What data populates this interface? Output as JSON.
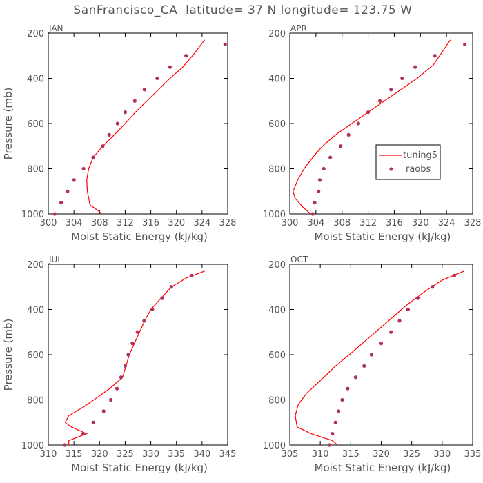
{
  "figure_title": "SanFrancisco_CA  latitude= 37 N longitude= 123.75 W",
  "colors": {
    "model": "#ff0000",
    "obs": "#b03060",
    "axis": "#000000",
    "text": "#555555"
  },
  "legend": {
    "model_label": "tuning5",
    "obs_label": "raobs",
    "placement": "center-right of APR panel"
  },
  "chart_data": [
    {
      "type": "line",
      "panel": "JAN",
      "xlabel": "Moist Static Energy (kJ/kg)",
      "ylabel": "Pressure (mb)",
      "xlim": [
        300,
        328
      ],
      "ylim": [
        200,
        1000
      ],
      "y_inverted": true,
      "xticks": [
        300,
        304,
        308,
        312,
        316,
        320,
        324,
        328
      ],
      "yticks": [
        200,
        400,
        600,
        800,
        1000
      ],
      "series": [
        {
          "name": "tuning5",
          "style": "line",
          "x": [
            308.5,
            308.0,
            306.5,
            306.1,
            306.0,
            306.3,
            307.0,
            308.5,
            310.3,
            312.0,
            313.6,
            315.4,
            317.2,
            319.0,
            321.0,
            322.8,
            324.4
          ],
          "y": [
            1010,
            990,
            960,
            900,
            850,
            800,
            750,
            700,
            650,
            600,
            550,
            500,
            450,
            400,
            350,
            290,
            230
          ]
        },
        {
          "name": "raobs",
          "style": "marker",
          "x": [
            301.0,
            302.0,
            303.0,
            304.0,
            305.5,
            307.0,
            308.5,
            309.5,
            310.8,
            312.0,
            313.5,
            315.0,
            317.0,
            319.0,
            321.5,
            327.6
          ],
          "y": [
            1000,
            950,
            900,
            850,
            800,
            750,
            700,
            650,
            600,
            550,
            500,
            450,
            400,
            350,
            300,
            250
          ]
        }
      ]
    },
    {
      "type": "line",
      "panel": "APR",
      "xlabel": "Moist Static Energy (kJ/kg)",
      "ylabel": "",
      "xlim": [
        300,
        328
      ],
      "ylim": [
        200,
        1000
      ],
      "y_inverted": true,
      "xticks": [
        300,
        304,
        308,
        312,
        316,
        320,
        324,
        328
      ],
      "yticks": [
        200,
        400,
        600,
        800,
        1000
      ],
      "series": [
        {
          "name": "tuning5",
          "style": "line",
          "x": [
            303.6,
            302.0,
            300.8,
            300.5,
            301.2,
            302.2,
            303.5,
            305.0,
            307.0,
            309.5,
            312.0,
            314.5,
            317.0,
            319.5,
            322.0,
            324.6
          ],
          "y": [
            1010,
            970,
            930,
            900,
            850,
            800,
            750,
            700,
            650,
            600,
            550,
            500,
            450,
            400,
            340,
            230
          ]
        },
        {
          "name": "raobs",
          "style": "marker",
          "x": [
            303.5,
            303.8,
            304.4,
            304.6,
            305.2,
            306.2,
            307.8,
            309.0,
            310.5,
            312.0,
            313.8,
            315.5,
            317.2,
            319.2,
            322.2,
            326.8
          ],
          "y": [
            1000,
            950,
            900,
            850,
            800,
            750,
            700,
            650,
            600,
            550,
            500,
            450,
            400,
            350,
            300,
            250
          ]
        }
      ]
    },
    {
      "type": "line",
      "panel": "JUL",
      "xlabel": "Moist Static Energy (kJ/kg)",
      "ylabel": "Pressure (mb)",
      "xlim": [
        310,
        345
      ],
      "ylim": [
        200,
        1000
      ],
      "y_inverted": true,
      "xticks": [
        310,
        315,
        320,
        325,
        330,
        335,
        340,
        345
      ],
      "yticks": [
        200,
        400,
        600,
        800,
        1000
      ],
      "series": [
        {
          "name": "tuning5",
          "style": "line",
          "x": [
            314.0,
            314.0,
            317.5,
            314.5,
            313.3,
            314.0,
            317.0,
            319.5,
            322.0,
            324.5,
            325.8,
            326.8,
            327.8,
            328.8,
            330.0,
            332.0,
            334.0,
            337.0,
            340.5
          ],
          "y": [
            1010,
            980,
            950,
            920,
            900,
            870,
            830,
            790,
            750,
            700,
            600,
            550,
            500,
            450,
            400,
            350,
            300,
            260,
            230
          ]
        },
        {
          "name": "raobs",
          "style": "marker",
          "x": [
            313.2,
            316.8,
            318.8,
            320.8,
            322.2,
            323.4,
            324.2,
            325.0,
            325.6,
            326.4,
            327.4,
            328.7,
            330.3,
            332.2,
            334.0,
            338.0
          ],
          "y": [
            1000,
            950,
            900,
            850,
            800,
            750,
            700,
            650,
            600,
            550,
            500,
            450,
            400,
            350,
            300,
            250
          ]
        }
      ]
    },
    {
      "type": "line",
      "panel": "OCT",
      "xlabel": "Moist Static Energy (kJ/kg)",
      "ylabel": "",
      "xlim": [
        305,
        335
      ],
      "ylim": [
        200,
        1000
      ],
      "y_inverted": true,
      "xticks": [
        305,
        310,
        315,
        320,
        325,
        330,
        335
      ],
      "yticks": [
        200,
        400,
        600,
        800,
        1000
      ],
      "series": [
        {
          "name": "tuning5",
          "style": "line",
          "x": [
            313.2,
            312.0,
            308.5,
            306.2,
            305.9,
            306.4,
            307.8,
            309.8,
            312.5,
            315.2,
            318.2,
            321.2,
            324.2,
            327.2,
            330.0,
            333.6
          ],
          "y": [
            1010,
            980,
            950,
            920,
            870,
            820,
            770,
            720,
            650,
            590,
            520,
            450,
            380,
            320,
            270,
            230
          ]
        },
        {
          "name": "raobs",
          "style": "marker",
          "x": [
            311.5,
            312.0,
            312.5,
            313.0,
            313.6,
            314.5,
            315.8,
            317.2,
            318.4,
            320.0,
            321.6,
            323.0,
            324.4,
            326.0,
            328.4,
            332.0
          ],
          "y": [
            1000,
            950,
            900,
            850,
            800,
            750,
            700,
            650,
            600,
            550,
            500,
            450,
            400,
            350,
            300,
            250
          ]
        }
      ]
    }
  ]
}
